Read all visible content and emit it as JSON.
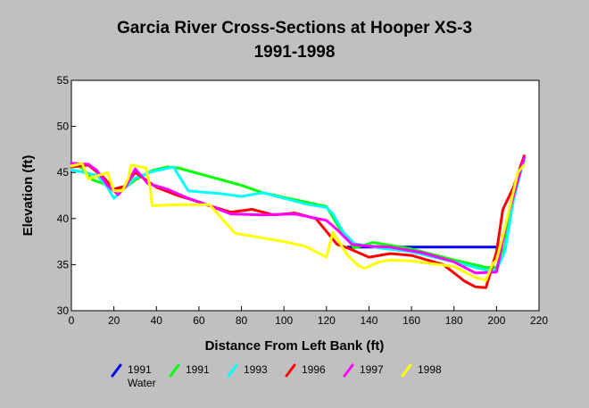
{
  "chart_data": {
    "type": "line",
    "title_lines": [
      "Garcia River Cross-Sections at Hooper XS-3",
      "1991-1998"
    ],
    "xlabel": "Distance From Left Bank (ft)",
    "ylabel": "Elevation (ft)",
    "xlim": [
      0,
      220
    ],
    "ylim": [
      30,
      55
    ],
    "xticks": [
      0,
      20,
      40,
      60,
      80,
      100,
      120,
      140,
      160,
      180,
      200,
      220
    ],
    "yticks": [
      30,
      35,
      40,
      45,
      50,
      55
    ],
    "grid": false,
    "legend_position": "bottom",
    "series": [
      {
        "name": "1991\nWater",
        "color": "#0000ff",
        "points": [
          [
            130,
            36.9
          ],
          [
            201,
            36.9
          ]
        ]
      },
      {
        "name": "1991",
        "color": "#00ff00",
        "points": [
          [
            0,
            46
          ],
          [
            5,
            45.5
          ],
          [
            10,
            44.2
          ],
          [
            15,
            43.8
          ],
          [
            20,
            43.2
          ],
          [
            25,
            43.3
          ],
          [
            30,
            44.2
          ],
          [
            38,
            45.2
          ],
          [
            45,
            45.6
          ],
          [
            50,
            45.5
          ],
          [
            80,
            43.6
          ],
          [
            90,
            42.8
          ],
          [
            100,
            42.3
          ],
          [
            120,
            41.3
          ],
          [
            126,
            39
          ],
          [
            133,
            36.8
          ],
          [
            142,
            37.4
          ],
          [
            160,
            36.7
          ],
          [
            180,
            35.5
          ],
          [
            195,
            34.7
          ],
          [
            200,
            34.7
          ],
          [
            204,
            37
          ],
          [
            207,
            42
          ],
          [
            213,
            46.3
          ]
        ]
      },
      {
        "name": "1993",
        "color": "#00ffff",
        "points": [
          [
            0,
            45.3
          ],
          [
            6,
            45
          ],
          [
            12,
            44.7
          ],
          [
            17,
            43.4
          ],
          [
            20,
            42.2
          ],
          [
            24,
            43.1
          ],
          [
            30,
            44.4
          ],
          [
            38,
            45.1
          ],
          [
            48,
            45.6
          ],
          [
            55,
            43
          ],
          [
            70,
            42.7
          ],
          [
            80,
            42.4
          ],
          [
            90,
            42.8
          ],
          [
            100,
            42.2
          ],
          [
            110,
            41.6
          ],
          [
            120,
            41.2
          ],
          [
            123,
            40.5
          ],
          [
            128,
            38.5
          ],
          [
            133,
            37.3
          ],
          [
            145,
            36.8
          ],
          [
            160,
            36.4
          ],
          [
            180,
            35.3
          ],
          [
            195,
            34.4
          ],
          [
            200,
            34.4
          ],
          [
            204,
            36.5
          ],
          [
            208,
            42
          ],
          [
            213,
            46.5
          ]
        ]
      },
      {
        "name": "1996",
        "color": "#ff0000",
        "points": [
          [
            0,
            45.6
          ],
          [
            8,
            45.8
          ],
          [
            15,
            44.5
          ],
          [
            20,
            43.2
          ],
          [
            25,
            43.5
          ],
          [
            30,
            45
          ],
          [
            35,
            44.2
          ],
          [
            40,
            43.4
          ],
          [
            50,
            42.5
          ],
          [
            60,
            41.8
          ],
          [
            65,
            41.4
          ],
          [
            75,
            40.7
          ],
          [
            85,
            41
          ],
          [
            95,
            40.4
          ],
          [
            105,
            40.6
          ],
          [
            115,
            40
          ],
          [
            120,
            38.6
          ],
          [
            125,
            37.2
          ],
          [
            130,
            36.8
          ],
          [
            140,
            35.8
          ],
          [
            150,
            36.2
          ],
          [
            160,
            36
          ],
          [
            175,
            35
          ],
          [
            185,
            33.2
          ],
          [
            190,
            32.6
          ],
          [
            195,
            32.5
          ],
          [
            200,
            36.4
          ],
          [
            203,
            41
          ],
          [
            208,
            43.4
          ],
          [
            213,
            46.8
          ]
        ]
      },
      {
        "name": "1997",
        "color": "#ff00ff",
        "points": [
          [
            0,
            46
          ],
          [
            8,
            45.9
          ],
          [
            12,
            45.2
          ],
          [
            17,
            43.6
          ],
          [
            22,
            42.6
          ],
          [
            26,
            43.6
          ],
          [
            30,
            45.4
          ],
          [
            36,
            43.8
          ],
          [
            45,
            43.2
          ],
          [
            55,
            42.2
          ],
          [
            65,
            41.4
          ],
          [
            75,
            40.5
          ],
          [
            90,
            40.4
          ],
          [
            105,
            40.5
          ],
          [
            120,
            39.8
          ],
          [
            125,
            38.8
          ],
          [
            132,
            37.2
          ],
          [
            140,
            37
          ],
          [
            150,
            36.9
          ],
          [
            165,
            36.3
          ],
          [
            180,
            35.3
          ],
          [
            190,
            34.1
          ],
          [
            200,
            34.2
          ],
          [
            205,
            40
          ],
          [
            213,
            46.6
          ]
        ]
      },
      {
        "name": "1998",
        "color": "#ffff00",
        "points": [
          [
            0,
            45.7
          ],
          [
            5,
            46
          ],
          [
            8,
            44.3
          ],
          [
            13,
            44.7
          ],
          [
            17,
            45
          ],
          [
            20,
            43
          ],
          [
            24,
            43
          ],
          [
            27,
            44.5
          ],
          [
            28,
            45.8
          ],
          [
            35,
            45.5
          ],
          [
            37,
            43.5
          ],
          [
            38,
            41.4
          ],
          [
            50,
            41.5
          ],
          [
            60,
            41.5
          ],
          [
            65,
            41.5
          ],
          [
            77,
            38.4
          ],
          [
            100,
            37.5
          ],
          [
            110,
            37
          ],
          [
            120,
            35.8
          ],
          [
            123,
            38.5
          ],
          [
            130,
            36
          ],
          [
            135,
            34.9
          ],
          [
            138,
            34.6
          ],
          [
            145,
            35.3
          ],
          [
            150,
            35.5
          ],
          [
            160,
            35.4
          ],
          [
            180,
            34.8
          ],
          [
            190,
            33.6
          ],
          [
            195,
            33.3
          ],
          [
            198,
            35
          ],
          [
            200,
            35.5
          ],
          [
            205,
            40
          ],
          [
            210,
            45
          ],
          [
            213,
            45.8
          ]
        ]
      }
    ]
  }
}
